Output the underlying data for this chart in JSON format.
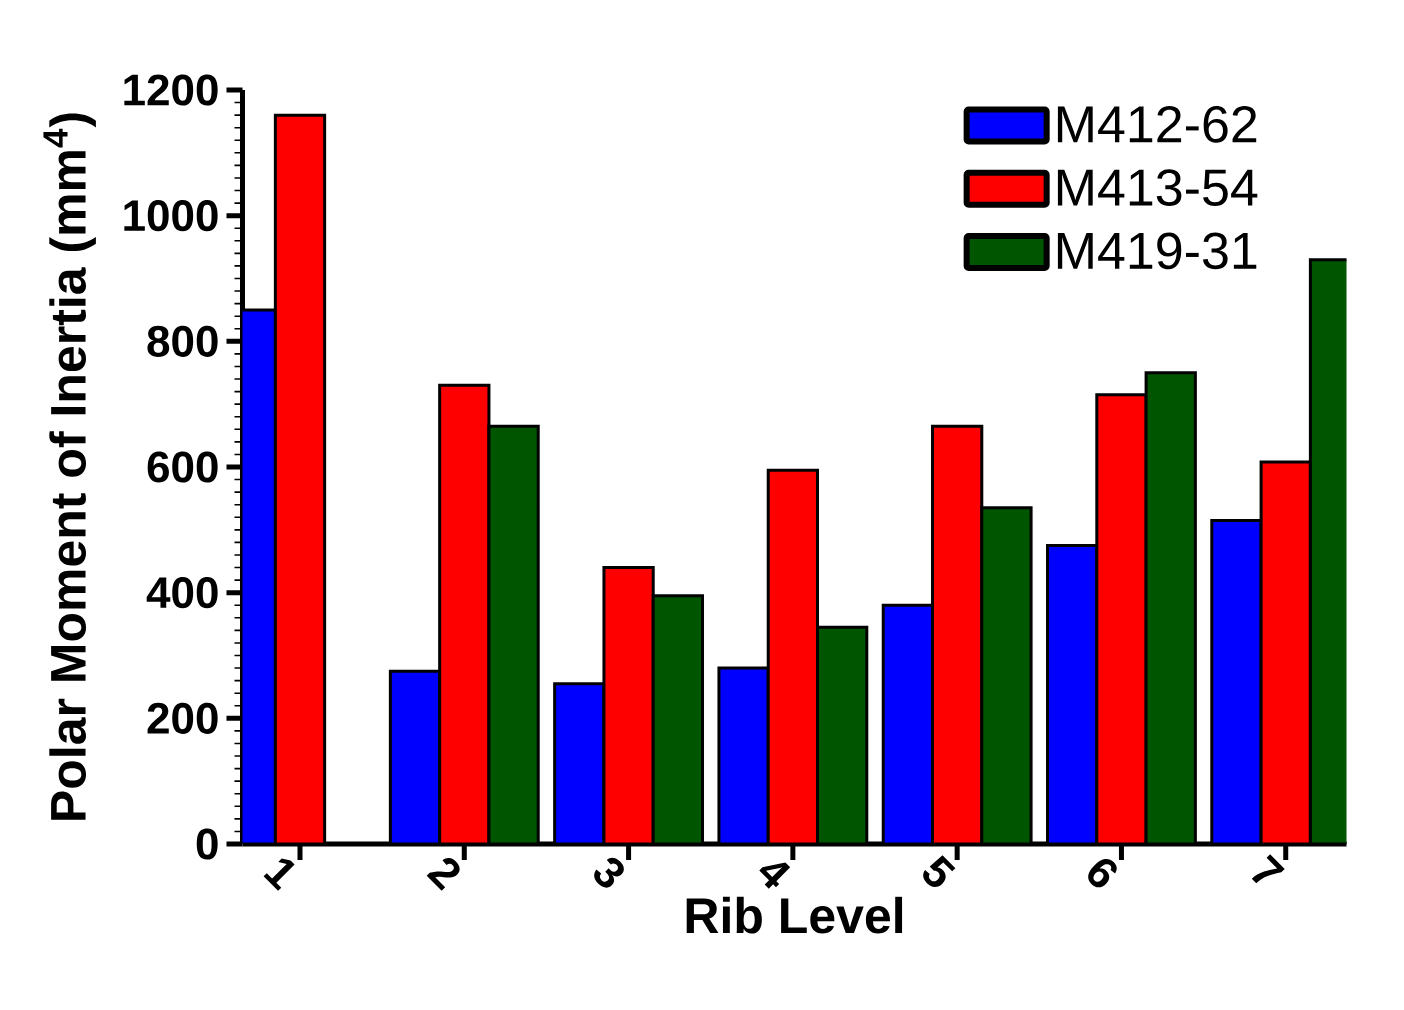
{
  "chart_data": {
    "type": "bar",
    "xlabel": "Rib Level",
    "ylabel": "Polar Moment of Inertia (mm$^{4}$)",
    "categories": [
      "1",
      "2",
      "3",
      "4",
      "5",
      "6",
      "7"
    ],
    "series": [
      {
        "name": "M412-62",
        "color": "#0000ff",
        "values": [
          850,
          275,
          255,
          280,
          380,
          475,
          515
        ]
      },
      {
        "name": "M413-54",
        "color": "#ff0000",
        "values": [
          1160,
          730,
          440,
          595,
          665,
          715,
          608
        ]
      },
      {
        "name": "M419-31",
        "color": "#005500",
        "values": [
          null,
          665,
          395,
          345,
          535,
          750,
          930
        ]
      }
    ],
    "ylim": [
      0,
      1200
    ],
    "yticks": [
      0,
      200,
      400,
      600,
      800,
      1000,
      1200
    ],
    "legend": "top right",
    "grid": false
  }
}
